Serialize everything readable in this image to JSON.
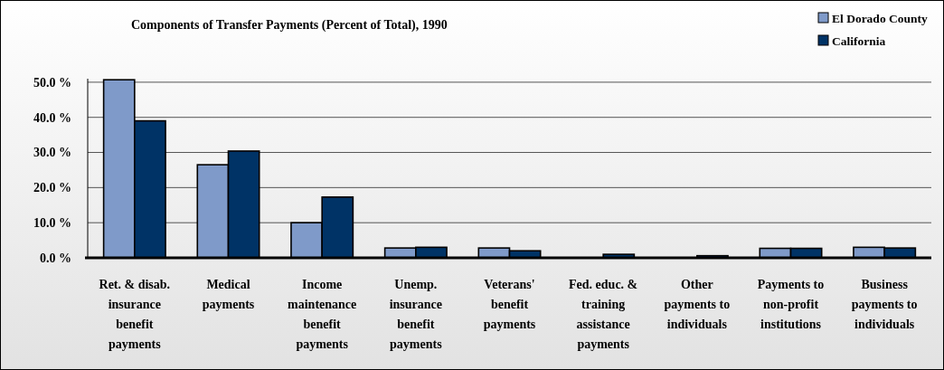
{
  "chart_data": {
    "type": "bar",
    "title": "Components of Transfer Payments (Percent of Total), 1990",
    "categories": [
      "Ret. & disab. insurance benefit payments",
      "Medical payments",
      "Income maintenance benefit payments",
      "Unemp. insurance benefit payments",
      "Veterans' benefit payments",
      "Fed. educ. & training assistance payments",
      "Other payments to individuals",
      "Payments to non-profit institutions",
      "Business payments to individuals"
    ],
    "series": [
      {
        "name": "El Dorado County",
        "color": "#7f9ac9",
        "values": [
          50.7,
          26.5,
          10.0,
          2.8,
          2.8,
          null,
          null,
          2.7,
          3.0
        ]
      },
      {
        "name": "California",
        "color": "#003366",
        "values": [
          39.0,
          30.4,
          17.3,
          3.0,
          2.0,
          1.0,
          0.6,
          2.7,
          2.8
        ]
      }
    ],
    "ylim": [
      0,
      51
    ],
    "yticks": [
      {
        "value": 0,
        "label": "0.0 %"
      },
      {
        "value": 10,
        "label": "10.0 %"
      },
      {
        "value": 20,
        "label": "20.0 %"
      },
      {
        "value": 30,
        "label": "30.0 %"
      },
      {
        "value": 40,
        "label": "40.0 %"
      },
      {
        "value": 50,
        "label": "50.0 %"
      }
    ],
    "grid": "y",
    "legend": "top right"
  }
}
